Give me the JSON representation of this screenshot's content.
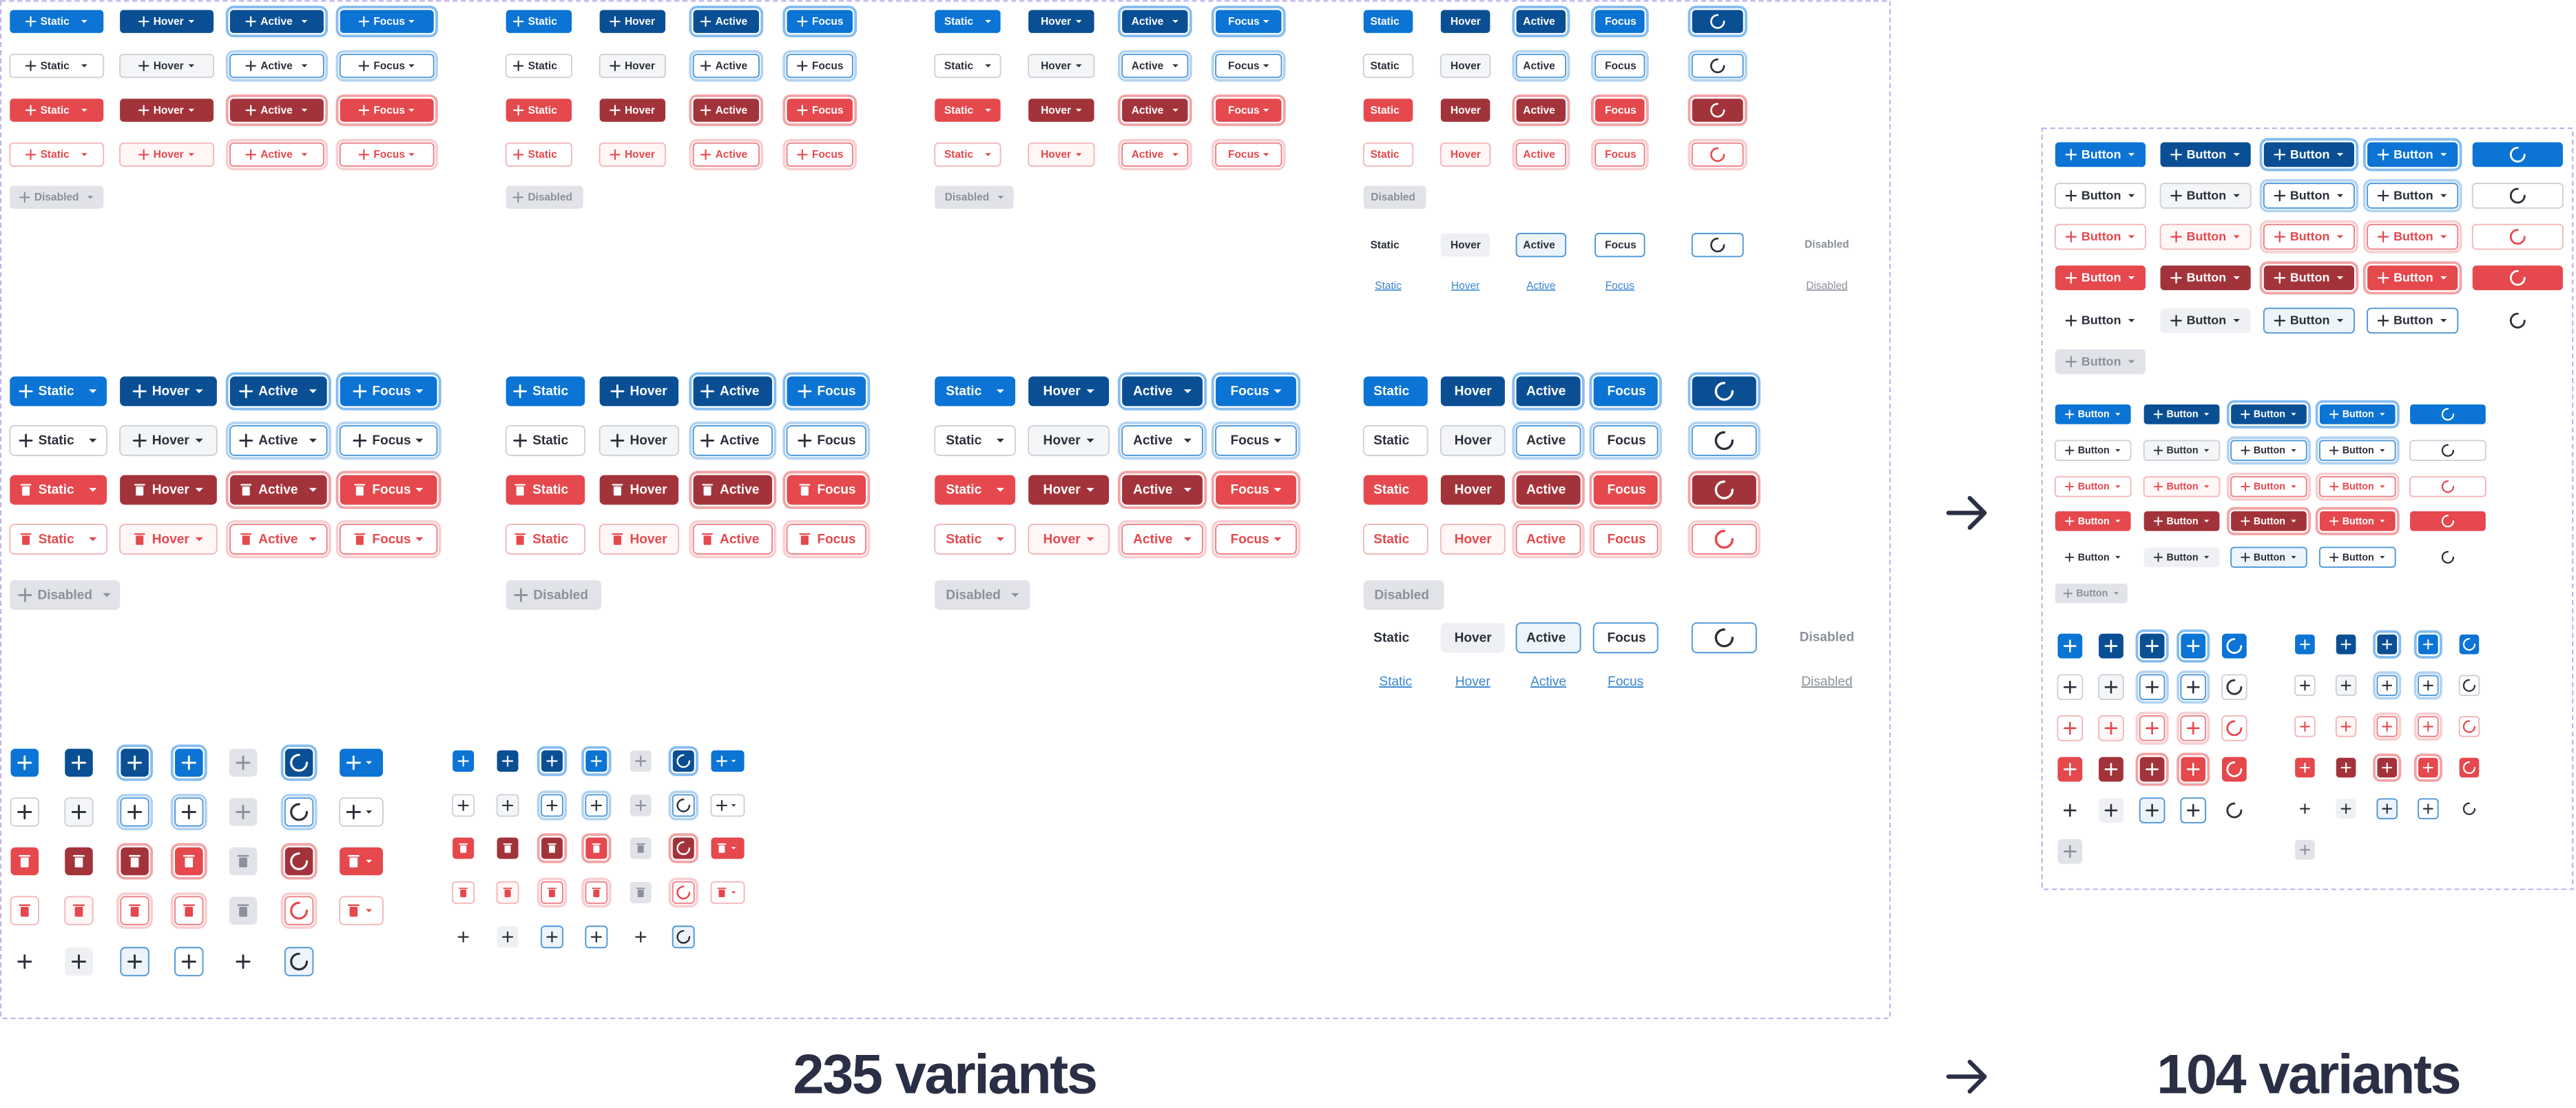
{
  "states": [
    "Static",
    "Hover",
    "Active",
    "Focus"
  ],
  "disabled": "Disabled",
  "button": "Button",
  "before": "235 variants",
  "after": "104 variants"
}
